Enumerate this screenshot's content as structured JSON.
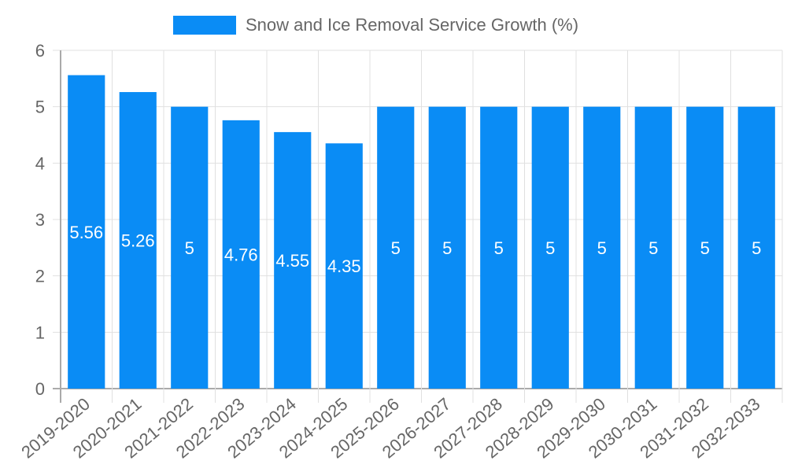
{
  "chart_data": {
    "type": "bar",
    "title": "",
    "xlabel": "",
    "ylabel": "",
    "ylim": [
      0,
      6
    ],
    "yticks": [
      0,
      1,
      2,
      3,
      4,
      5,
      6
    ],
    "grid": true,
    "legend_position": "top",
    "categories": [
      "2019-2020",
      "2020-2021",
      "2021-2022",
      "2022-2023",
      "2023-2024",
      "2024-2025",
      "2025-2026",
      "2026-2027",
      "2027-2028",
      "2028-2029",
      "2029-2030",
      "2030-2031",
      "2031-2032",
      "2032-2033"
    ],
    "series": [
      {
        "name": "Snow and Ice Removal Service Growth (%)",
        "color": "#0a8cf5",
        "values": [
          5.56,
          5.26,
          5,
          4.76,
          4.55,
          4.35,
          5,
          5,
          5,
          5,
          5,
          5,
          5,
          5
        ]
      }
    ],
    "data_labels": [
      "5.56",
      "5.26",
      "5",
      "4.76",
      "4.55",
      "4.35",
      "5",
      "5",
      "5",
      "5",
      "5",
      "5",
      "5",
      "5"
    ]
  },
  "legend": {
    "label": "Snow and Ice Removal Service Growth (%)",
    "color": "#0a8cf5"
  }
}
